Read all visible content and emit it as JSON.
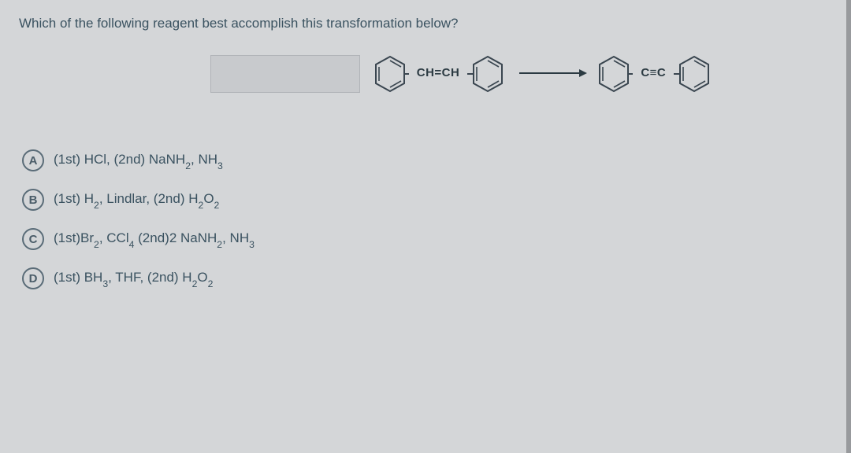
{
  "question": "Which of the following reagent best accomplish this transformation below?",
  "reaction": {
    "bond1_label": "CH=CH",
    "bond2_label": "C≡C",
    "colors": {
      "ring_stroke": "#3a4650",
      "text": "#2b3a42",
      "arrow": "#2b3a42",
      "blank_bg": "#c8cacd",
      "blank_border": "#b0b3b7"
    }
  },
  "options": [
    {
      "letter": "A",
      "text_html": "(1st) HCl, (2nd) NaNH<sub>2</sub>, NH<sub>3</sub>"
    },
    {
      "letter": "B",
      "text_html": "(1st) H<sub>2</sub>, Lindlar, (2nd) H<sub>2</sub>O<sub>2</sub>"
    },
    {
      "letter": "C",
      "text_html": "(1st)Br<sub>2</sub>, CCl<sub>4</sub> (2nd)2 NaNH<sub>2</sub>, NH<sub>3</sub>"
    },
    {
      "letter": "D",
      "text_html": "(1st) BH<sub>3</sub>, THF, (2nd) H<sub>2</sub>O<sub>2</sub>"
    }
  ],
  "style": {
    "page_bg": "#d4d6d8",
    "body_bg": "#b8bcc0",
    "text_color": "#3a5260",
    "circle_border": "#5a6c78",
    "circle_text": "#4a5c68",
    "font_size_question": 17,
    "font_size_option": 17
  }
}
